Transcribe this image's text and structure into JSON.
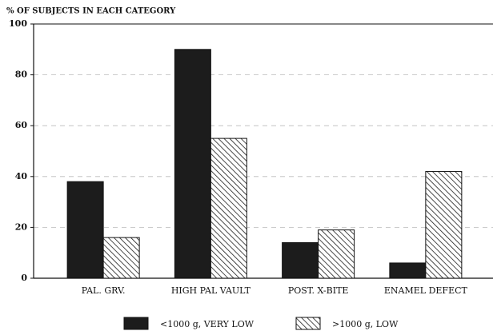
{
  "chart_data": {
    "type": "bar",
    "y_label": "% OF SUBJECTS IN EACH CATEGORY",
    "categories": [
      "PAL. GRV.",
      "HIGH PAL VAULT",
      "POST. X-BITE",
      "ENAMEL DEFECT"
    ],
    "series": [
      {
        "name": "<1000 g, VERY LOW",
        "color": "#1c1c1c",
        "pattern": "solid",
        "values": [
          38,
          90,
          14,
          6
        ]
      },
      {
        "name": ">1000 g, LOW",
        "color": "#1c1c1c",
        "pattern": "hatch",
        "values": [
          16,
          55,
          19,
          42
        ]
      }
    ],
    "ylim": [
      0,
      100
    ],
    "yticks": [
      0,
      20,
      40,
      60,
      80,
      100
    ],
    "grid": true
  }
}
